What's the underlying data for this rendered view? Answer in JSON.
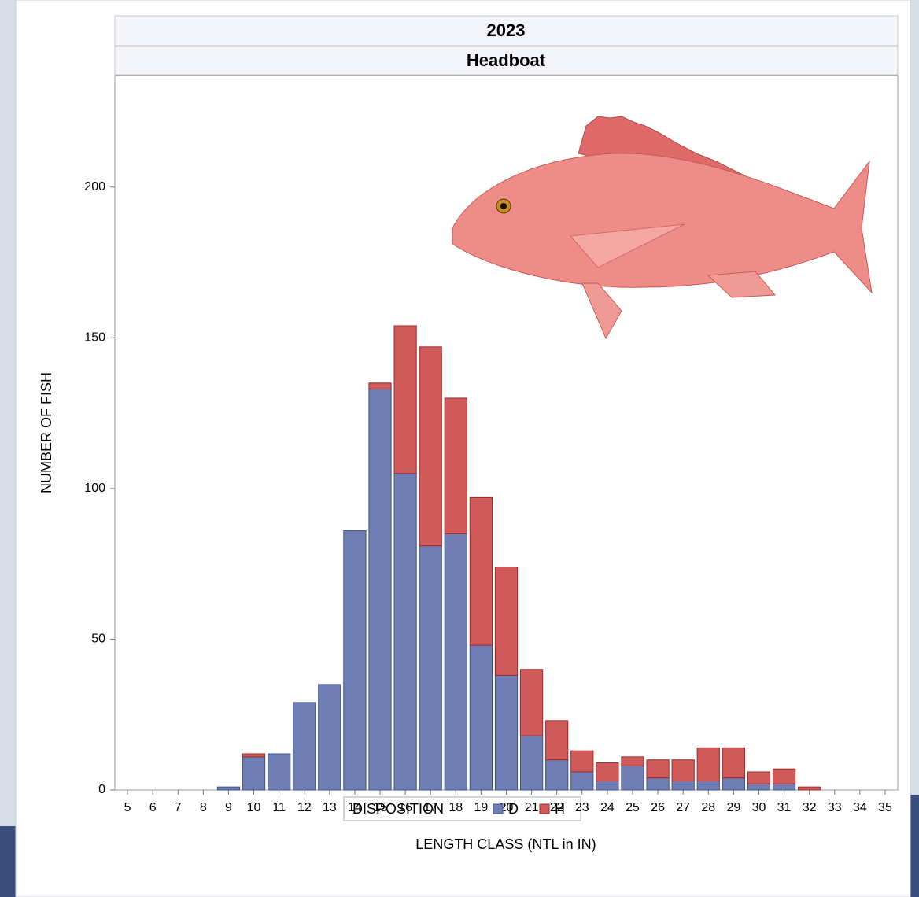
{
  "chart_data": {
    "type": "stacked-bar",
    "title": "2023",
    "subtitle": "Headboat",
    "xlabel": "LENGTH CLASS (NTL in IN)",
    "ylabel": "NUMBER OF FISH",
    "categories": [
      5,
      6,
      7,
      8,
      9,
      10,
      11,
      12,
      13,
      14,
      15,
      16,
      17,
      18,
      19,
      20,
      21,
      22,
      23,
      24,
      25,
      26,
      27,
      28,
      29,
      30,
      31,
      32,
      33,
      34,
      35
    ],
    "series": [
      {
        "name": "D",
        "color": "#6f7fb6",
        "values": [
          0,
          0,
          0,
          0,
          1,
          11,
          12,
          29,
          35,
          86,
          133,
          105,
          81,
          85,
          48,
          38,
          18,
          10,
          6,
          3,
          8,
          4,
          3,
          3,
          4,
          2,
          2,
          0,
          0,
          0,
          0
        ]
      },
      {
        "name": "H",
        "color": "#d05a5a",
        "values": [
          0,
          0,
          0,
          0,
          0,
          1,
          0,
          0,
          0,
          0,
          2,
          49,
          66,
          45,
          49,
          36,
          22,
          13,
          7,
          6,
          3,
          6,
          7,
          11,
          10,
          4,
          5,
          1,
          0,
          0,
          0
        ]
      }
    ],
    "legend_title": "DISPOSITION",
    "ylim": [
      0,
      237
    ],
    "yticks": [
      0,
      50,
      100,
      150,
      200
    ]
  }
}
